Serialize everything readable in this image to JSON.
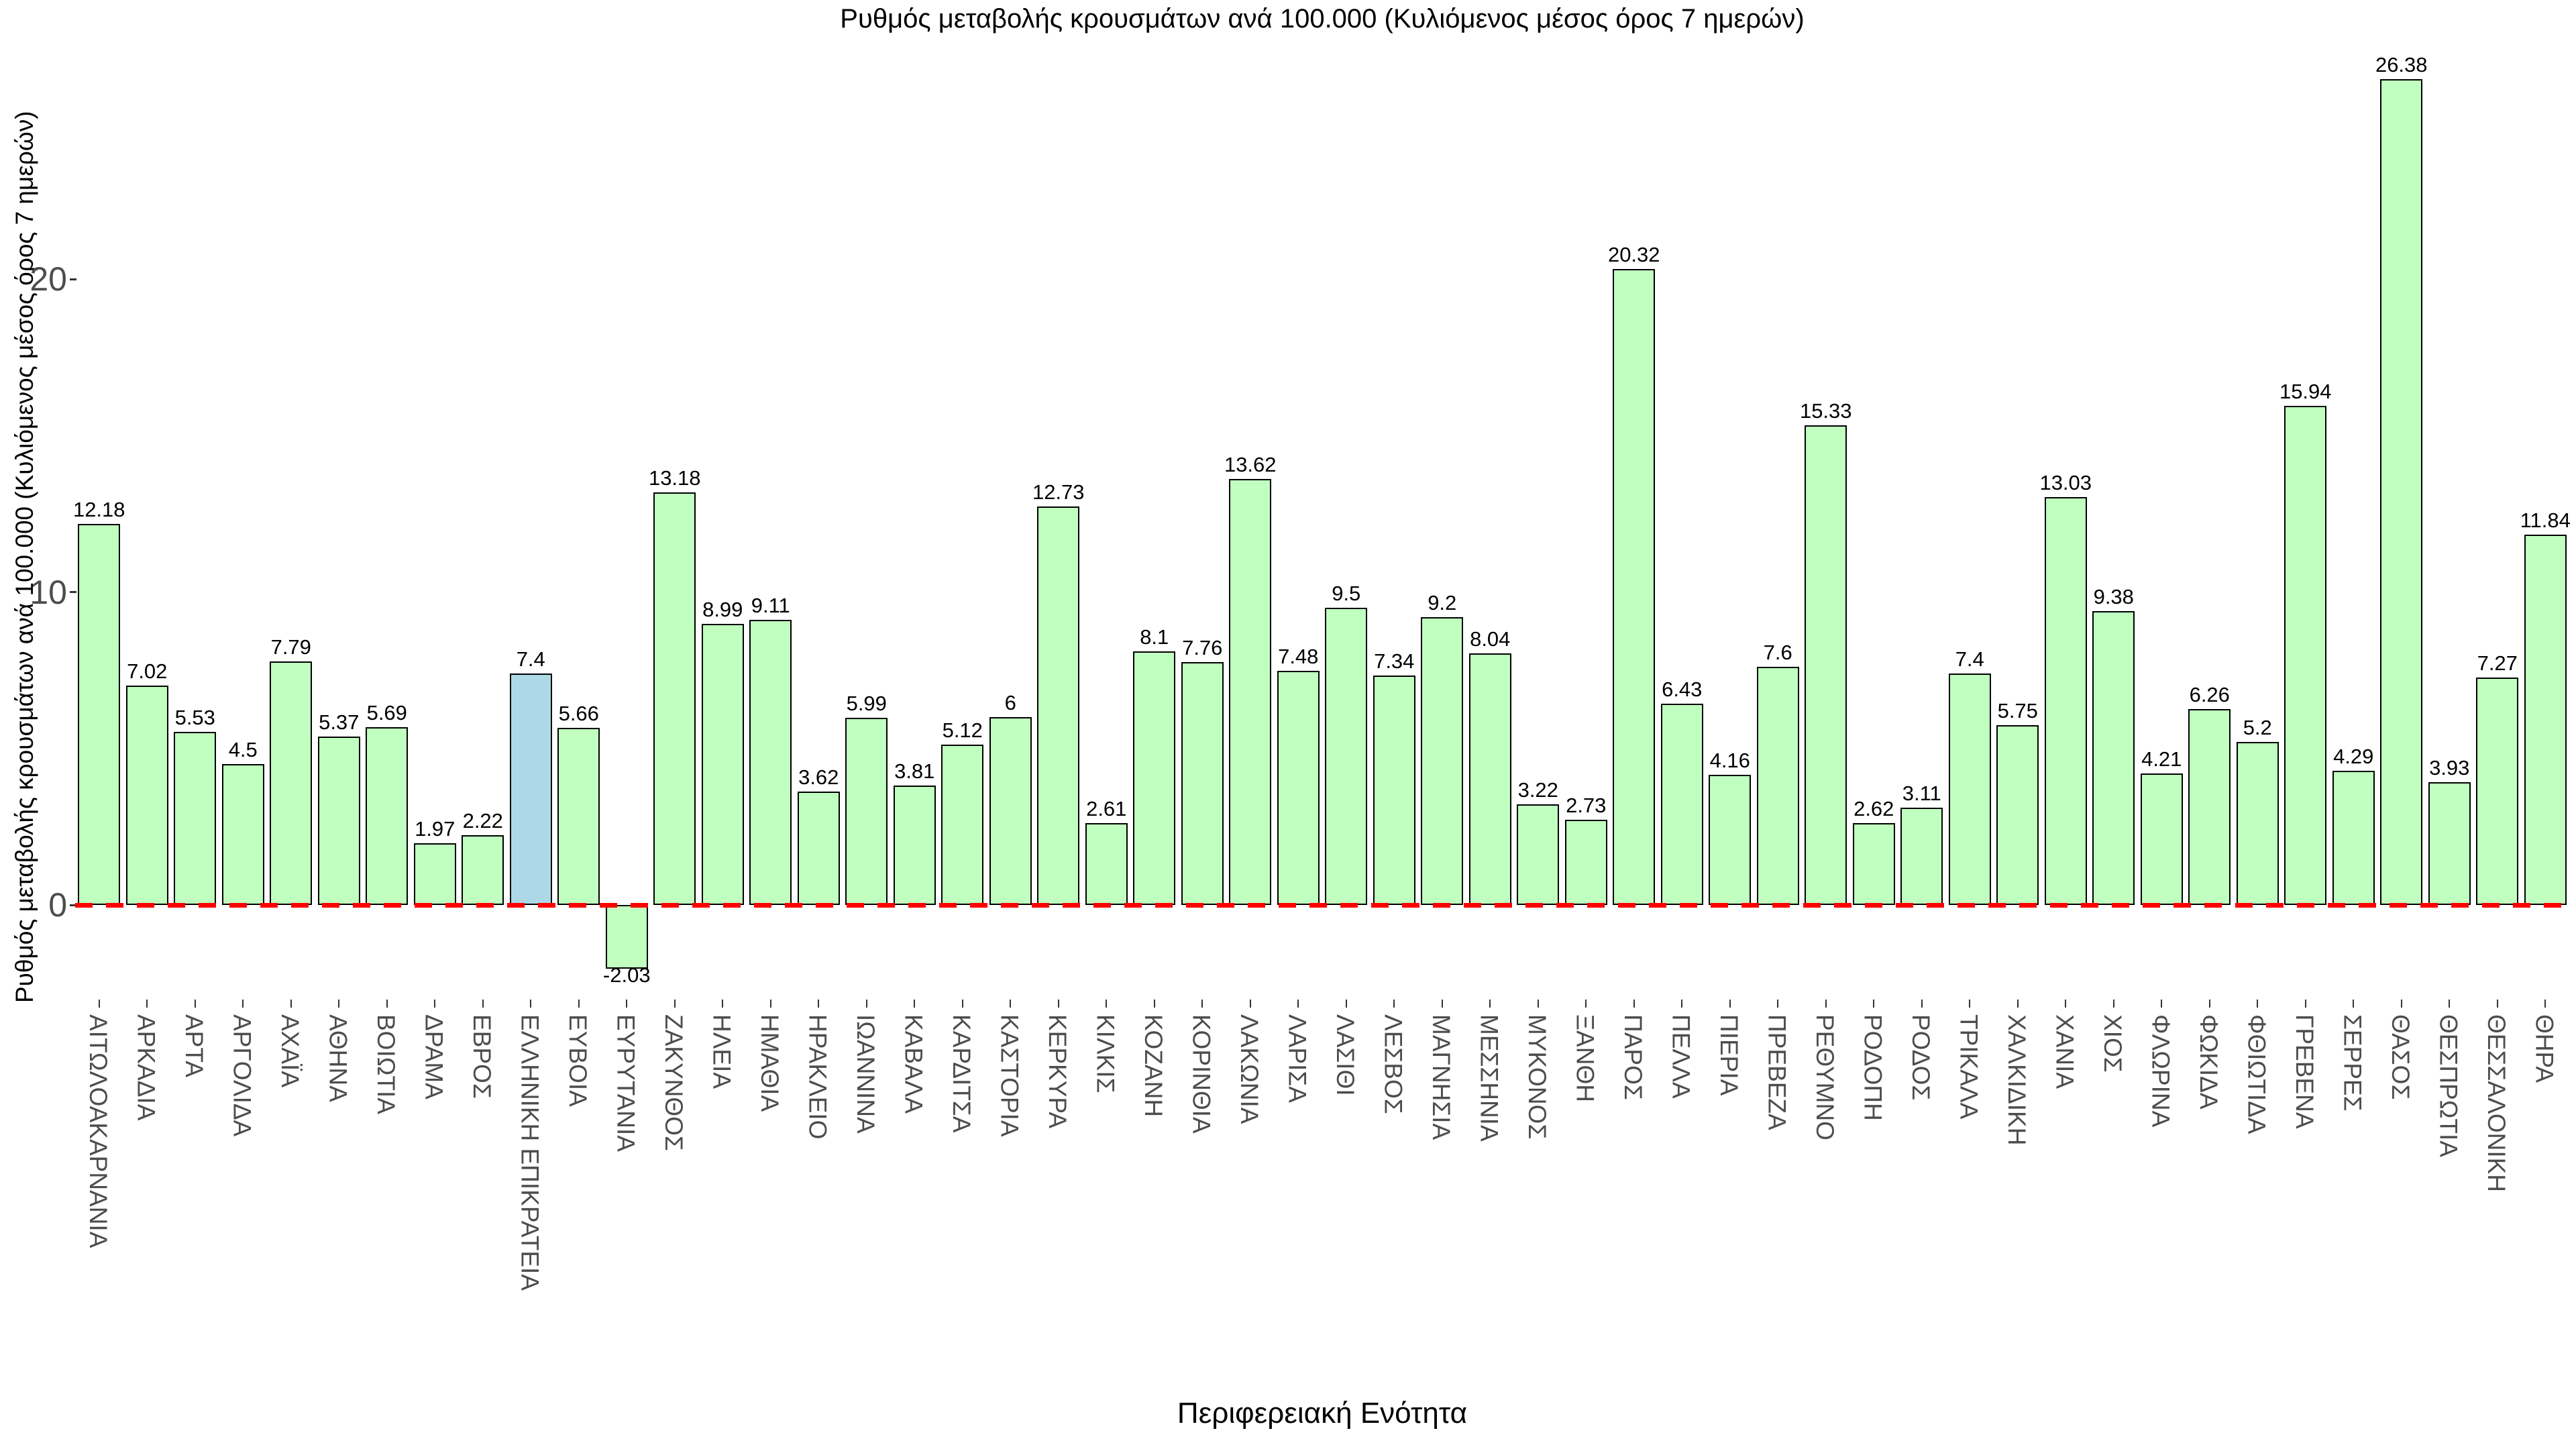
{
  "chart_data": {
    "type": "bar",
    "title": "Ρυθμός μεταβολής κρουσμάτων ανά 100.000 (Κυλιόμενος μέσος όρος 7 ημερών)",
    "xlabel": "Περιφερειακή Ενότητα",
    "ylabel": "Ρυθμός μεταβολής κρουσμάτων ανά 100.000 (Κυλιόμενος μέσος όρος 7 ημερών)",
    "yticks": [
      0,
      10,
      20
    ],
    "ylim": [
      -3.5,
      27.8
    ],
    "grid": "off",
    "legend": "none",
    "zero_line": {
      "value": 0,
      "color": "#FF0000",
      "style": "dashed"
    },
    "colors": {
      "bar_fill": "#C1FFC1",
      "bar_highlight_fill": "#ADD8E6",
      "bar_border": "#000000",
      "axis_text": "#4d4d4d",
      "label_text": "#000000"
    },
    "highlight_category": "ΕΛΛΗΝΙΚΗ ΕΠΙΚΡΑΤΕΙΑ",
    "categories": [
      "ΑΙΤΩΛΟΑΚΑΡΝΑΝΙΑ",
      "ΑΡΚΑΔΙΑ",
      "ΑΡΤΑ",
      "ΑΡΓΟΛΙΔΑ",
      "ΑΧΑΪΑ",
      "ΑΘΗΝΑ",
      "ΒΟΙΩΤΙΑ",
      "ΔΡΑΜΑ",
      "ΕΒΡΟΣ",
      "ΕΛΛΗΝΙΚΗ ΕΠΙΚΡΑΤΕΙΑ",
      "ΕΥΒΟΙΑ",
      "ΕΥΡΥΤΑΝΙΑ",
      "ΖΑΚΥΝΘΟΣ",
      "ΗΛΕΙΑ",
      "ΗΜΑΘΙΑ",
      "ΗΡΑΚΛΕΙΟ",
      "ΙΩΑΝΝΙΝΑ",
      "ΚΑΒΑΛΑ",
      "ΚΑΡΔΙΤΣΑ",
      "ΚΑΣΤΟΡΙΑ",
      "ΚΕΡΚΥΡΑ",
      "ΚΙΛΚΙΣ",
      "ΚΟΖΑΝΗ",
      "ΚΟΡΙΝΘΙΑ",
      "ΛΑΚΩΝΙΑ",
      "ΛΑΡΙΣΑ",
      "ΛΑΣΙΘΙ",
      "ΛΕΣΒΟΣ",
      "ΜΑΓΝΗΣΙΑ",
      "ΜΕΣΣΗΝΙΑ",
      "ΜΥΚΟΝΟΣ",
      "ΞΑΝΘΗ",
      "ΠΑΡΟΣ",
      "ΠΕΛΛΑ",
      "ΠΙΕΡΙΑ",
      "ΠΡΕΒΕΖΑ",
      "ΡΕΘΥΜΝΟ",
      "ΡΟΔΟΠΗ",
      "ΡΟΔΟΣ",
      "ΤΡΙΚΑΛΑ",
      "ΧΑΛΚΙΔΙΚΗ",
      "ΧΑΝΙΑ",
      "ΧΙΟΣ",
      "ΦΛΩΡΙΝΑ",
      "ΦΩΚΙΔΑ",
      "ΦΘΙΩΤΙΔΑ",
      "ΓΡΕΒΕΝΑ",
      "ΣΕΡΡΕΣ",
      "ΘΑΣΟΣ",
      "ΘΕΣΠΡΩΤΙΑ",
      "ΘΕΣΣΑΛΟΝΙΚΗ",
      "ΘΗΡΑ"
    ],
    "values": [
      12.18,
      7.02,
      5.53,
      4.5,
      7.79,
      5.37,
      5.69,
      1.97,
      2.22,
      7.4,
      5.66,
      -2.03,
      13.18,
      8.99,
      9.11,
      3.62,
      5.99,
      3.81,
      5.12,
      6,
      12.73,
      2.61,
      8.1,
      7.76,
      13.62,
      7.48,
      9.5,
      7.34,
      9.2,
      8.04,
      3.22,
      2.73,
      20.32,
      6.43,
      4.16,
      7.6,
      15.33,
      2.62,
      3.11,
      7.4,
      5.75,
      13.03,
      9.38,
      4.21,
      6.26,
      5.2,
      15.94,
      4.29,
      26.38,
      3.93,
      7.27,
      11.84
    ]
  }
}
